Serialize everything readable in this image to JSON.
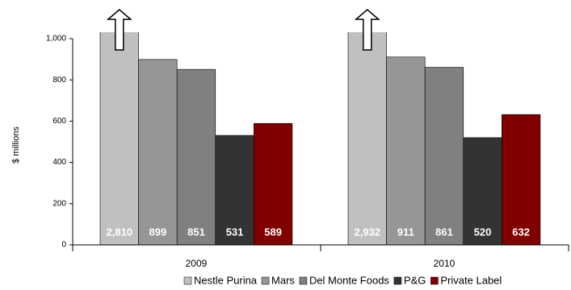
{
  "chart_data": {
    "type": "bar",
    "y_label": "$ millions",
    "categories": [
      "2009",
      "2010"
    ],
    "series": [
      {
        "name": "Nestle Purina",
        "color": "#c0c0c0",
        "values": [
          2810,
          2932
        ],
        "value_labels": [
          "2,810",
          "2,932"
        ]
      },
      {
        "name": "Mars",
        "color": "#969696",
        "values": [
          899,
          911
        ]
      },
      {
        "name": "Del Monte Foods",
        "color": "#808080",
        "values": [
          851,
          861
        ]
      },
      {
        "name": "P&G",
        "color": "#333333",
        "values": [
          531,
          520
        ]
      },
      {
        "name": "Private Label",
        "color": "#800000",
        "values": [
          589,
          632
        ]
      }
    ],
    "ylim": [
      0,
      1000
    ],
    "yticks": [
      0,
      200,
      400,
      600,
      800,
      {
        "value": 1000,
        "label": "1,000"
      }
    ],
    "grid": false
  }
}
